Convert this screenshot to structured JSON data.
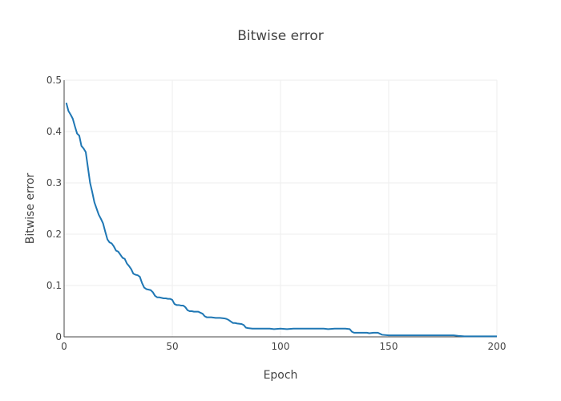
{
  "chart_data": {
    "type": "line",
    "title": "Bitwise error",
    "xlabel": "Epoch",
    "ylabel": "Bitwise error",
    "xlim": [
      0,
      200
    ],
    "ylim": [
      0,
      0.5
    ],
    "x_ticks": [
      0,
      50,
      100,
      150,
      200
    ],
    "y_ticks": [
      0,
      0.1,
      0.2,
      0.3,
      0.4,
      0.5
    ],
    "grid": true,
    "line_color": "#1f77b4",
    "series": [
      {
        "points": [
          [
            1,
            0.456
          ],
          [
            2,
            0.44
          ],
          [
            3,
            0.433
          ],
          [
            4,
            0.425
          ],
          [
            5,
            0.41
          ],
          [
            6,
            0.396
          ],
          [
            7,
            0.392
          ],
          [
            8,
            0.372
          ],
          [
            9,
            0.367
          ],
          [
            10,
            0.36
          ],
          [
            11,
            0.33
          ],
          [
            12,
            0.3
          ],
          [
            13,
            0.282
          ],
          [
            14,
            0.262
          ],
          [
            15,
            0.25
          ],
          [
            16,
            0.238
          ],
          [
            17,
            0.23
          ],
          [
            18,
            0.221
          ],
          [
            19,
            0.205
          ],
          [
            20,
            0.19
          ],
          [
            21,
            0.184
          ],
          [
            22,
            0.182
          ],
          [
            23,
            0.176
          ],
          [
            24,
            0.168
          ],
          [
            25,
            0.166
          ],
          [
            26,
            0.16
          ],
          [
            27,
            0.154
          ],
          [
            28,
            0.152
          ],
          [
            29,
            0.143
          ],
          [
            30,
            0.138
          ],
          [
            31,
            0.132
          ],
          [
            32,
            0.123
          ],
          [
            33,
            0.121
          ],
          [
            34,
            0.12
          ],
          [
            35,
            0.117
          ],
          [
            36,
            0.105
          ],
          [
            37,
            0.096
          ],
          [
            38,
            0.093
          ],
          [
            39,
            0.092
          ],
          [
            40,
            0.091
          ],
          [
            41,
            0.087
          ],
          [
            42,
            0.08
          ],
          [
            43,
            0.077
          ],
          [
            44,
            0.077
          ],
          [
            45,
            0.076
          ],
          [
            46,
            0.075
          ],
          [
            47,
            0.075
          ],
          [
            48,
            0.074
          ],
          [
            49,
            0.074
          ],
          [
            50,
            0.072
          ],
          [
            51,
            0.064
          ],
          [
            52,
            0.062
          ],
          [
            53,
            0.062
          ],
          [
            54,
            0.061
          ],
          [
            55,
            0.061
          ],
          [
            56,
            0.058
          ],
          [
            57,
            0.052
          ],
          [
            58,
            0.05
          ],
          [
            59,
            0.05
          ],
          [
            60,
            0.049
          ],
          [
            62,
            0.049
          ],
          [
            63,
            0.047
          ],
          [
            64,
            0.045
          ],
          [
            65,
            0.04
          ],
          [
            66,
            0.038
          ],
          [
            68,
            0.038
          ],
          [
            70,
            0.037
          ],
          [
            72,
            0.037
          ],
          [
            74,
            0.036
          ],
          [
            75,
            0.035
          ],
          [
            76,
            0.033
          ],
          [
            77,
            0.03
          ],
          [
            78,
            0.027
          ],
          [
            79,
            0.027
          ],
          [
            80,
            0.026
          ],
          [
            82,
            0.025
          ],
          [
            83,
            0.023
          ],
          [
            84,
            0.018
          ],
          [
            85,
            0.017
          ],
          [
            87,
            0.016
          ],
          [
            90,
            0.016
          ],
          [
            95,
            0.016
          ],
          [
            97,
            0.015
          ],
          [
            100,
            0.016
          ],
          [
            103,
            0.015
          ],
          [
            106,
            0.016
          ],
          [
            110,
            0.016
          ],
          [
            115,
            0.016
          ],
          [
            120,
            0.016
          ],
          [
            122,
            0.015
          ],
          [
            125,
            0.016
          ],
          [
            128,
            0.016
          ],
          [
            130,
            0.016
          ],
          [
            132,
            0.015
          ],
          [
            133,
            0.01
          ],
          [
            134,
            0.008
          ],
          [
            137,
            0.008
          ],
          [
            140,
            0.008
          ],
          [
            141,
            0.007
          ],
          [
            143,
            0.008
          ],
          [
            145,
            0.008
          ],
          [
            146,
            0.006
          ],
          [
            147,
            0.004
          ],
          [
            150,
            0.003
          ],
          [
            155,
            0.003
          ],
          [
            160,
            0.003
          ],
          [
            165,
            0.003
          ],
          [
            170,
            0.003
          ],
          [
            175,
            0.003
          ],
          [
            180,
            0.003
          ],
          [
            182,
            0.002
          ],
          [
            185,
            0.001
          ],
          [
            190,
            0.001
          ],
          [
            195,
            0.001
          ],
          [
            200,
            0.001
          ]
        ]
      }
    ]
  }
}
